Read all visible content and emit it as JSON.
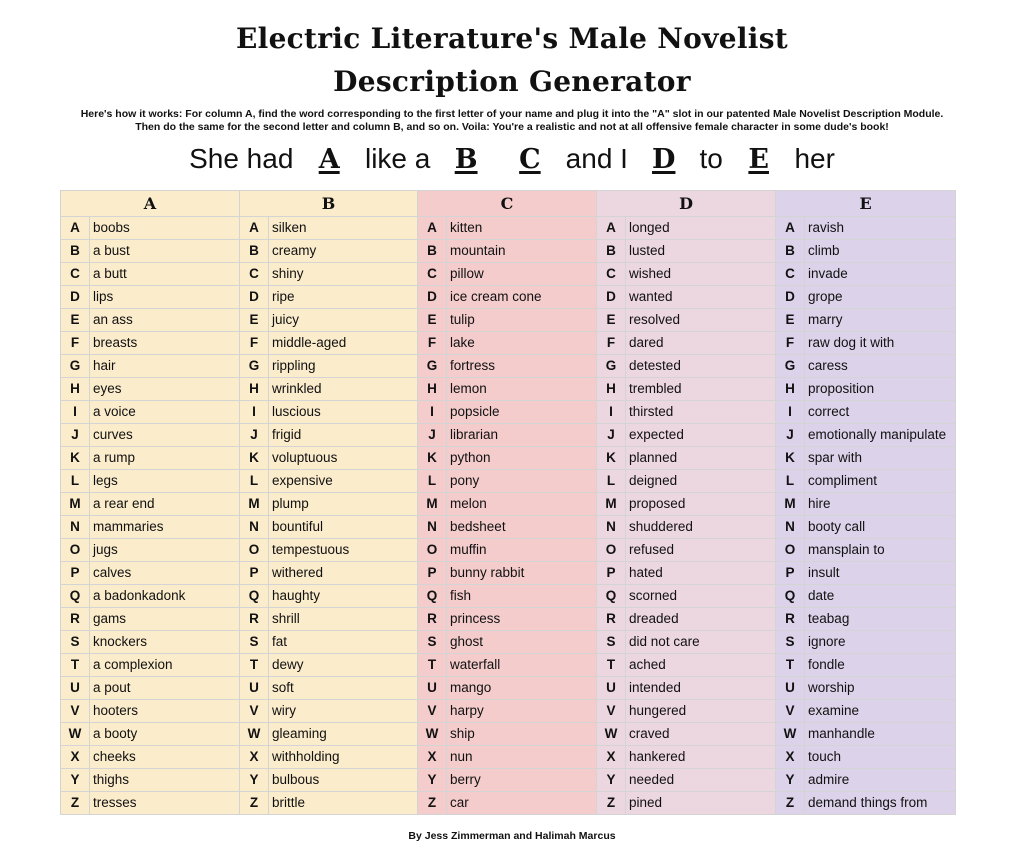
{
  "title_line1": "Electric Literature's Male Novelist",
  "title_line2": "Description Generator",
  "intro_line1": "Here's how it works: For column A, find the word corresponding to the first letter of your name and plug it into the \"A\" slot in our patented Male Novelist Description Module.",
  "intro_line2": "Then do the same for the second letter and column B, and so on. Voila: You're a realistic and not at all offensive female character in some dude's book!",
  "formula": {
    "p1": "She had ",
    "s1": "A",
    "p2": " like a ",
    "s2": "B",
    "p3": " ",
    "s3": "C",
    "p4": " and I ",
    "s4": "D",
    "p5": " to ",
    "s5": "E",
    "p6": " her"
  },
  "columns": [
    "A",
    "B",
    "C",
    "D",
    "E"
  ],
  "colors": {
    "A": "#fbeccc",
    "B": "#fbeccc",
    "C": "#f4cccc",
    "D": "#ecd6e0",
    "E": "#dcd2ea"
  },
  "letters": [
    "A",
    "B",
    "C",
    "D",
    "E",
    "F",
    "G",
    "H",
    "I",
    "J",
    "K",
    "L",
    "M",
    "N",
    "O",
    "P",
    "Q",
    "R",
    "S",
    "T",
    "U",
    "V",
    "W",
    "X",
    "Y",
    "Z"
  ],
  "A": [
    "boobs",
    "a bust",
    "a butt",
    "lips",
    "an ass",
    "breasts",
    "hair",
    "eyes",
    "a voice",
    "curves",
    "a rump",
    "legs",
    "a rear end",
    "mammaries",
    "jugs",
    "calves",
    "a badonkadonk",
    "gams",
    "knockers",
    "a complexion",
    "a pout",
    "hooters",
    "a booty",
    "cheeks",
    "thighs",
    "tresses"
  ],
  "B": [
    "silken",
    "creamy",
    "shiny",
    "ripe",
    "juicy",
    "middle-aged",
    "rippling",
    "wrinkled",
    "luscious",
    "frigid",
    "voluptuous",
    "expensive",
    "plump",
    "bountiful",
    "tempestuous",
    "withered",
    "haughty",
    "shrill",
    "fat",
    "dewy",
    "soft",
    "wiry",
    "gleaming",
    "withholding",
    "bulbous",
    "brittle"
  ],
  "C": [
    "kitten",
    "mountain",
    "pillow",
    "ice cream cone",
    "tulip",
    "lake",
    "fortress",
    "lemon",
    "popsicle",
    "librarian",
    "python",
    "pony",
    "melon",
    "bedsheet",
    "muffin",
    "bunny rabbit",
    "fish",
    "princess",
    "ghost",
    "waterfall",
    "mango",
    "harpy",
    "ship",
    "nun",
    "berry",
    "car"
  ],
  "D": [
    "longed",
    "lusted",
    "wished",
    "wanted",
    "resolved",
    "dared",
    "detested",
    "trembled",
    "thirsted",
    "expected",
    "planned",
    "deigned",
    "proposed",
    "shuddered",
    "refused",
    "hated",
    "scorned",
    "dreaded",
    "did not care",
    "ached",
    "intended",
    "hungered",
    "craved",
    "hankered",
    "needed",
    "pined"
  ],
  "E": [
    "ravish",
    "climb",
    "invade",
    "grope",
    "marry",
    "raw dog it with",
    "caress",
    "proposition",
    "correct",
    "emotionally manipulate",
    "spar with",
    "compliment",
    "hire",
    "booty call",
    "mansplain to",
    "insult",
    "date",
    "teabag",
    "ignore",
    "fondle",
    "worship",
    "examine",
    "manhandle",
    "touch",
    "admire",
    "demand things from"
  ],
  "footer": "By Jess Zimmerman and Halimah Marcus"
}
